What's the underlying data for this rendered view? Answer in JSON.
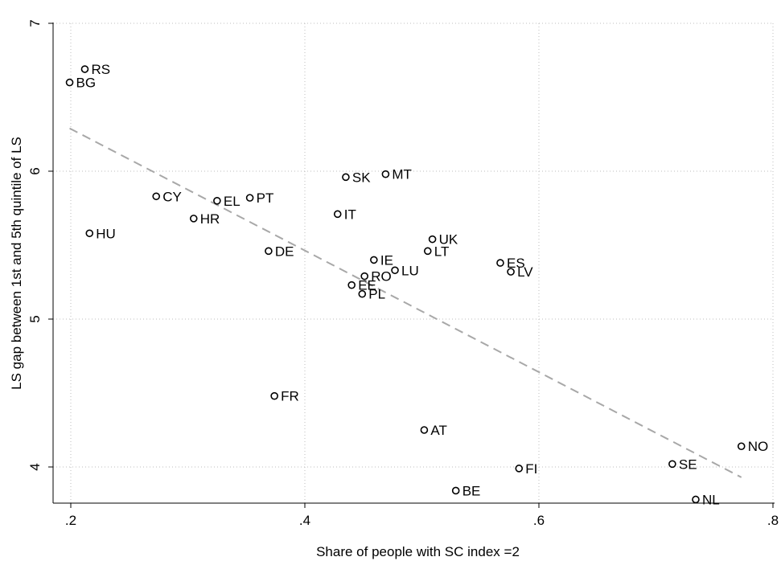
{
  "chart_data": {
    "type": "scatter",
    "title": "",
    "xlabel": "Share of people with SC index =2",
    "ylabel": "LS gap between 1st and 5th quintile of LS",
    "xlim": [
      0.2,
      0.8
    ],
    "ylim": [
      3.7,
      7.0
    ],
    "x_ticks": [
      0.2,
      0.4,
      0.6,
      0.8
    ],
    "x_tick_labels": [
      ".2",
      ".4",
      ".6",
      ".8"
    ],
    "y_ticks": [
      4,
      5,
      6,
      7
    ],
    "y_tick_labels": [
      "4",
      "5",
      "6",
      "7"
    ],
    "grid": true,
    "points": [
      {
        "label": "RS",
        "x": 0.212,
        "y": 6.69
      },
      {
        "label": "BG",
        "x": 0.199,
        "y": 6.6
      },
      {
        "label": "SK",
        "x": 0.435,
        "y": 5.96
      },
      {
        "label": "MT",
        "x": 0.469,
        "y": 5.98
      },
      {
        "label": "CY",
        "x": 0.273,
        "y": 5.83
      },
      {
        "label": "EL",
        "x": 0.325,
        "y": 5.8
      },
      {
        "label": "PT",
        "x": 0.353,
        "y": 5.82
      },
      {
        "label": "IT",
        "x": 0.428,
        "y": 5.71
      },
      {
        "label": "HR",
        "x": 0.305,
        "y": 5.68
      },
      {
        "label": "HU",
        "x": 0.216,
        "y": 5.58
      },
      {
        "label": "UK",
        "x": 0.509,
        "y": 5.54
      },
      {
        "label": "DE",
        "x": 0.369,
        "y": 5.46
      },
      {
        "label": "LT",
        "x": 0.505,
        "y": 5.46
      },
      {
        "label": "IE",
        "x": 0.459,
        "y": 5.4
      },
      {
        "label": "ES",
        "x": 0.567,
        "y": 5.38
      },
      {
        "label": "LV",
        "x": 0.576,
        "y": 5.32
      },
      {
        "label": "LU",
        "x": 0.477,
        "y": 5.33
      },
      {
        "label": "RO",
        "x": 0.451,
        "y": 5.29
      },
      {
        "label": "EE",
        "x": 0.44,
        "y": 5.23
      },
      {
        "label": "PL",
        "x": 0.449,
        "y": 5.17
      },
      {
        "label": "FR",
        "x": 0.374,
        "y": 4.48
      },
      {
        "label": "AT",
        "x": 0.502,
        "y": 4.25
      },
      {
        "label": "FI",
        "x": 0.583,
        "y": 3.99
      },
      {
        "label": "BE",
        "x": 0.529,
        "y": 3.84
      },
      {
        "label": "SE",
        "x": 0.714,
        "y": 4.02
      },
      {
        "label": "NL",
        "x": 0.734,
        "y": 3.78
      },
      {
        "label": "NO",
        "x": 0.773,
        "y": 4.14
      }
    ],
    "fit_line": {
      "x": [
        0.199,
        0.773
      ],
      "y": [
        6.29,
        3.93
      ]
    }
  }
}
